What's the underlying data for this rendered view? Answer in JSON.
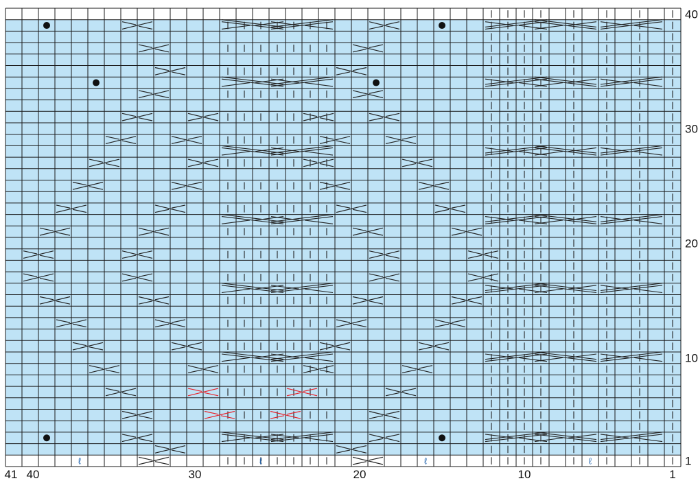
{
  "chart_data": {
    "type": "knitting-chart",
    "columns": 41,
    "rows": 40,
    "column_labels": [
      "41",
      "40",
      "30",
      "20",
      "10",
      "1"
    ],
    "row_labels": [
      "40",
      "30",
      "20",
      "10",
      "1"
    ],
    "shaded_rows": [
      2,
      39
    ],
    "cable_colors": {
      "normal": "#222222",
      "highlight": "#e8222a"
    },
    "background_colors": {
      "shaded": "#bfe3f6",
      "plain": "#ffffff",
      "grid": "#1a1a1a"
    },
    "bobble_rows": [
      3,
      34,
      39
    ],
    "twisted_stitch_cols_bottom": [
      37,
      26,
      16,
      6
    ],
    "symbols": [
      "cable-cross-right",
      "cable-cross-left",
      "purl-vertical",
      "bobble",
      "twisted-knit"
    ]
  }
}
